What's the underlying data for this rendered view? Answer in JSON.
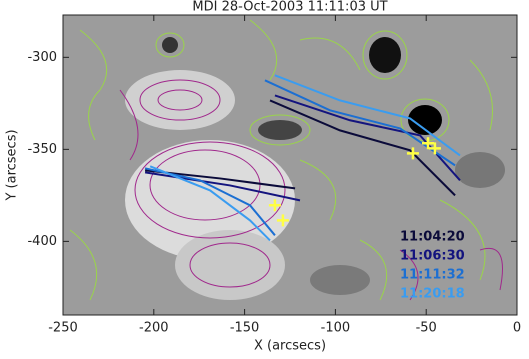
{
  "chart_data": {
    "type": "line",
    "title": "MDI 28-Oct-2003 11:11:03 UT",
    "xlabel": "X (arcsecs)",
    "ylabel": "Y (arcsecs)",
    "xlim": [
      -250,
      0
    ],
    "ylim": [
      -440,
      -277
    ],
    "xticks": [
      -250,
      -200,
      -150,
      -100,
      -50,
      0
    ],
    "yticks": [
      -300,
      -350,
      -400
    ],
    "series": [
      {
        "name": "11:04:20",
        "color": "#0b0b3a",
        "x": [
          -204.8,
          -163.5,
          -122.2,
          null,
          -136,
          -97.5,
          -58.9,
          -34.1
        ],
        "values": [
          -361.4,
          -365.8,
          -371.2,
          null,
          -323.4,
          -339.7,
          -350.5,
          -375
        ]
      },
      {
        "name": "11:06:30",
        "color": "#14147e",
        "x": [
          -204.8,
          -158,
          -119.5,
          null,
          -133.3,
          -92,
          -53.4,
          -31.4
        ],
        "values": [
          -362.5,
          -369.6,
          -377.7,
          null,
          -320.7,
          -334.2,
          -342.4,
          -366.8
        ]
      },
      {
        "name": "11:11:32",
        "color": "#1c6fd2",
        "x": [
          -204.8,
          -174.6,
          -147,
          -133.3,
          null,
          -138.8,
          -103,
          -64.4,
          -34.1
        ],
        "values": [
          -360.3,
          -366.8,
          -380.4,
          -396.7,
          null,
          -312.5,
          -328.8,
          -338.6,
          -358.7
        ]
      },
      {
        "name": "11:20:18",
        "color": "#3a9cf0",
        "x": [
          -202,
          -169,
          -147,
          -136,
          null,
          -133.3,
          -97.5,
          -58.9,
          -31.4
        ],
        "values": [
          -359.2,
          -372.3,
          -388.6,
          -399.5,
          null,
          -309.8,
          -323.4,
          -333.2,
          -353.3
        ]
      }
    ],
    "markers": {
      "color": "#ffff44",
      "x": [
        -133.3,
        -128.9,
        -57.3,
        -49,
        -45.2
      ],
      "y": [
        -380.4,
        -388.6,
        -352.2,
        -346.7,
        -349.5
      ]
    }
  }
}
